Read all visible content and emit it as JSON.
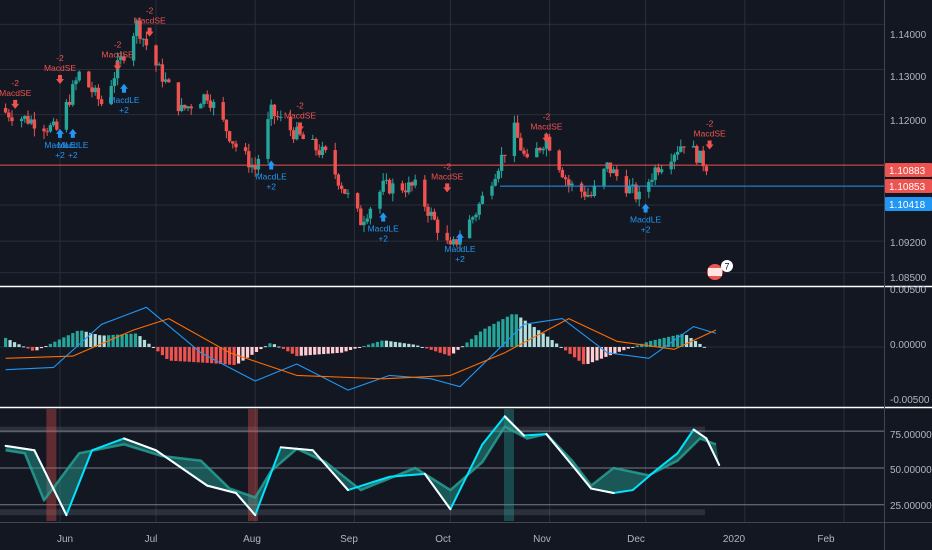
{
  "colors": {
    "background": "#131722",
    "grid": "#2a2e39",
    "up": "#26a69a",
    "down": "#ef5350",
    "macd_line": "#2196f3",
    "signal_line": "#ff6d00",
    "price_line_red": "#ef5350",
    "price_line_blue": "#2196f3",
    "stoch_fast": "#00e5ff",
    "stoch_slow": "#ffffff"
  },
  "x_axis": {
    "labels": [
      "Jun",
      "Jul",
      "Aug",
      "Sep",
      "Oct",
      "Nov",
      "Dec",
      "2020",
      "Feb"
    ]
  },
  "price_pane": {
    "ticks": [
      "1.14000",
      "1.13000",
      "1.12000",
      "1.09200",
      "1.08500"
    ],
    "tags": [
      {
        "text": "1.10883",
        "color": "#ef5350"
      },
      {
        "text": "1.10853",
        "color": "#ef5350"
      },
      {
        "text": "1.10418",
        "color": "#2196f3"
      }
    ],
    "badge": "7"
  },
  "macd_pane": {
    "ticks": [
      "0.00500",
      "0.00000",
      "-0.00500"
    ]
  },
  "stoch_pane": {
    "ticks": [
      "75.00000",
      "50.00000",
      "25.00000"
    ]
  },
  "signals": [
    {
      "kind": "short",
      "label": "MacdSE",
      "qty": "-2"
    },
    {
      "kind": "short",
      "label": "MacdSE",
      "qty": "-2"
    },
    {
      "kind": "long",
      "label": "MacdLE",
      "qty": "+2"
    },
    {
      "kind": "long",
      "label": "MacdLE",
      "qty": "+2"
    },
    {
      "kind": "short",
      "label": "MacdSE",
      "qty": "-2"
    },
    {
      "kind": "long",
      "label": "MacdLE",
      "qty": "+2"
    },
    {
      "kind": "short",
      "label": "MacdSE",
      "qty": "-2"
    },
    {
      "kind": "long",
      "label": "MacdLE",
      "qty": "+2"
    },
    {
      "kind": "short",
      "label": "MacdSE",
      "qty": "-2"
    },
    {
      "kind": "long",
      "label": "MacdLE",
      "qty": "+2"
    },
    {
      "kind": "short",
      "label": "MacdSE",
      "qty": "-2"
    },
    {
      "kind": "long",
      "label": "MacdLE",
      "qty": "+2"
    },
    {
      "kind": "short",
      "label": "MacdSE",
      "qty": "-2"
    },
    {
      "kind": "long",
      "label": "MacdLE",
      "qty": "+2"
    },
    {
      "kind": "short",
      "label": "MacdSE",
      "qty": "-2"
    }
  ],
  "chart_data": [
    {
      "type": "candlestick",
      "title": "",
      "price_range": [
        1.0825,
        1.1445
      ],
      "price_levels": [
        1.10883,
        1.10853,
        1.10418
      ],
      "close_path": [
        {
          "date": "2019-05-15",
          "close": 1.1205
        },
        {
          "date": "2019-05-24",
          "close": 1.1185
        },
        {
          "date": "2019-05-31",
          "close": 1.1165
        },
        {
          "date": "2019-06-07",
          "close": 1.129
        },
        {
          "date": "2019-06-14",
          "close": 1.1225
        },
        {
          "date": "2019-06-25",
          "close": 1.14
        },
        {
          "date": "2019-07-01",
          "close": 1.131
        },
        {
          "date": "2019-07-09",
          "close": 1.121
        },
        {
          "date": "2019-07-17",
          "close": 1.1245
        },
        {
          "date": "2019-07-26",
          "close": 1.113
        },
        {
          "date": "2019-08-01",
          "close": 1.108
        },
        {
          "date": "2019-08-06",
          "close": 1.1205
        },
        {
          "date": "2019-08-14",
          "close": 1.1155
        },
        {
          "date": "2019-08-23",
          "close": 1.111
        },
        {
          "date": "2019-09-03",
          "close": 1.0965
        },
        {
          "date": "2019-09-10",
          "close": 1.104
        },
        {
          "date": "2019-09-20",
          "close": 1.104
        },
        {
          "date": "2019-10-01",
          "close": 1.09
        },
        {
          "date": "2019-10-09",
          "close": 1.0985
        },
        {
          "date": "2019-10-21",
          "close": 1.1165
        },
        {
          "date": "2019-10-25",
          "close": 1.109
        },
        {
          "date": "2019-10-31",
          "close": 1.115
        },
        {
          "date": "2019-11-07",
          "close": 1.1045
        },
        {
          "date": "2019-11-14",
          "close": 1.102
        },
        {
          "date": "2019-11-19",
          "close": 1.1085
        },
        {
          "date": "2019-11-29",
          "close": 1.1015
        },
        {
          "date": "2019-12-04",
          "close": 1.108
        },
        {
          "date": "2019-12-13",
          "close": 1.114
        },
        {
          "date": "2019-12-20",
          "close": 1.1088
        }
      ]
    },
    {
      "type": "bar+line",
      "title": "",
      "ylim": [
        -0.0052,
        0.0052
      ],
      "histogram": [
        {
          "date": "2019-05-15",
          "value": 0.0008
        },
        {
          "date": "2019-05-24",
          "value": -0.0004
        },
        {
          "date": "2019-06-07",
          "value": 0.0015
        },
        {
          "date": "2019-06-14",
          "value": 0.001
        },
        {
          "date": "2019-06-25",
          "value": 0.0012
        },
        {
          "date": "2019-07-05",
          "value": -0.0012
        },
        {
          "date": "2019-07-17",
          "value": -0.0014
        },
        {
          "date": "2019-07-26",
          "value": -0.0016
        },
        {
          "date": "2019-08-06",
          "value": 0.0004
        },
        {
          "date": "2019-08-14",
          "value": -0.0008
        },
        {
          "date": "2019-08-28",
          "value": -0.0005
        },
        {
          "date": "2019-09-10",
          "value": 0.0006
        },
        {
          "date": "2019-09-20",
          "value": 0.0002
        },
        {
          "date": "2019-10-01",
          "value": -0.0008
        },
        {
          "date": "2019-10-11",
          "value": 0.0015
        },
        {
          "date": "2019-10-21",
          "value": 0.003
        },
        {
          "date": "2019-10-31",
          "value": 0.001
        },
        {
          "date": "2019-11-12",
          "value": -0.0016
        },
        {
          "date": "2019-11-22",
          "value": -0.0005
        },
        {
          "date": "2019-12-02",
          "value": 0.0005
        },
        {
          "date": "2019-12-13",
          "value": 0.0012
        },
        {
          "date": "2019-12-20",
          "value": -0.0001
        }
      ],
      "series": [
        {
          "values": [
            {
              "date": "2019-05-15",
              "value": -0.002
            },
            {
              "date": "2019-05-30",
              "value": -0.0018
            },
            {
              "date": "2019-06-14",
              "value": 0.002
            },
            {
              "date": "2019-06-28",
              "value": 0.0035
            },
            {
              "date": "2019-07-15",
              "value": -0.0005
            },
            {
              "date": "2019-08-01",
              "value": -0.003
            },
            {
              "date": "2019-08-14",
              "value": -0.0015
            },
            {
              "date": "2019-08-30",
              "value": -0.0038
            },
            {
              "date": "2019-09-12",
              "value": -0.0025
            },
            {
              "date": "2019-09-25",
              "value": -0.0028
            },
            {
              "date": "2019-10-04",
              "value": -0.0035
            },
            {
              "date": "2019-10-24",
              "value": 0.002
            },
            {
              "date": "2019-11-05",
              "value": 0.0025
            },
            {
              "date": "2019-11-19",
              "value": -0.0005
            },
            {
              "date": "2019-12-02",
              "value": -0.001
            },
            {
              "date": "2019-12-16",
              "value": 0.0018
            },
            {
              "date": "2019-12-23",
              "value": 0.0012
            }
          ]
        },
        {
          "values": [
            {
              "date": "2019-05-15",
              "value": -0.001
            },
            {
              "date": "2019-06-05",
              "value": -0.0008
            },
            {
              "date": "2019-06-24",
              "value": 0.0015
            },
            {
              "date": "2019-07-05",
              "value": 0.0025
            },
            {
              "date": "2019-07-24",
              "value": -0.0005
            },
            {
              "date": "2019-08-14",
              "value": -0.0025
            },
            {
              "date": "2019-09-10",
              "value": -0.0028
            },
            {
              "date": "2019-10-01",
              "value": -0.0025
            },
            {
              "date": "2019-10-18",
              "value": -0.0005
            },
            {
              "date": "2019-11-07",
              "value": 0.0025
            },
            {
              "date": "2019-11-22",
              "value": 0.0005
            },
            {
              "date": "2019-12-10",
              "value": -0.0002
            },
            {
              "date": "2019-12-23",
              "value": 0.0015
            }
          ]
        }
      ]
    },
    {
      "type": "line",
      "title": "",
      "ylim": [
        14,
        90
      ],
      "reference_lines": [
        75,
        50,
        25
      ],
      "series": [
        {
          "values": [
            {
              "date": "2019-05-15",
              "value": 62
            },
            {
              "date": "2019-05-21",
              "value": 60
            },
            {
              "date": "2019-05-27",
              "value": 28
            },
            {
              "date": "2019-06-07",
              "value": 60
            },
            {
              "date": "2019-06-21",
              "value": 66
            },
            {
              "date": "2019-07-03",
              "value": 58
            },
            {
              "date": "2019-07-15",
              "value": 55
            },
            {
              "date": "2019-07-24",
              "value": 36
            },
            {
              "date": "2019-08-01",
              "value": 30
            },
            {
              "date": "2019-08-06",
              "value": 48
            },
            {
              "date": "2019-08-14",
              "value": 63
            },
            {
              "date": "2019-08-23",
              "value": 54
            },
            {
              "date": "2019-09-03",
              "value": 35
            },
            {
              "date": "2019-09-20",
              "value": 50
            },
            {
              "date": "2019-10-01",
              "value": 35
            },
            {
              "date": "2019-10-11",
              "value": 54
            },
            {
              "date": "2019-10-18",
              "value": 78
            },
            {
              "date": "2019-10-25",
              "value": 70
            },
            {
              "date": "2019-10-31",
              "value": 73
            },
            {
              "date": "2019-11-08",
              "value": 55
            },
            {
              "date": "2019-11-14",
              "value": 38
            },
            {
              "date": "2019-11-21",
              "value": 50
            },
            {
              "date": "2019-12-02",
              "value": 45
            },
            {
              "date": "2019-12-11",
              "value": 55
            },
            {
              "date": "2019-12-18",
              "value": 70
            },
            {
              "date": "2019-12-23",
              "value": 66
            }
          ]
        },
        {
          "values": [
            {
              "date": "2019-05-15",
              "value": 65
            },
            {
              "date": "2019-05-24",
              "value": 62
            },
            {
              "date": "2019-06-03",
              "value": 18
            },
            {
              "date": "2019-06-11",
              "value": 62
            },
            {
              "date": "2019-06-21",
              "value": 70
            },
            {
              "date": "2019-07-01",
              "value": 62
            },
            {
              "date": "2019-07-17",
              "value": 38
            },
            {
              "date": "2019-07-26",
              "value": 33
            },
            {
              "date": "2019-08-01",
              "value": 18
            },
            {
              "date": "2019-08-09",
              "value": 64
            },
            {
              "date": "2019-08-19",
              "value": 62
            },
            {
              "date": "2019-08-30",
              "value": 35
            },
            {
              "date": "2019-09-12",
              "value": 44
            },
            {
              "date": "2019-09-23",
              "value": 46
            },
            {
              "date": "2019-10-01",
              "value": 22
            },
            {
              "date": "2019-10-11",
              "value": 66
            },
            {
              "date": "2019-10-18",
              "value": 85
            },
            {
              "date": "2019-10-24",
              "value": 72
            },
            {
              "date": "2019-10-31",
              "value": 73
            },
            {
              "date": "2019-11-08",
              "value": 52
            },
            {
              "date": "2019-11-14",
              "value": 36
            },
            {
              "date": "2019-11-21",
              "value": 33
            },
            {
              "date": "2019-11-27",
              "value": 35
            },
            {
              "date": "2019-12-04",
              "value": 48
            },
            {
              "date": "2019-12-11",
              "value": 60
            },
            {
              "date": "2019-12-16",
              "value": 76
            },
            {
              "date": "2019-12-20",
              "value": 70
            },
            {
              "date": "2019-12-24",
              "value": 52
            }
          ]
        }
      ]
    }
  ]
}
